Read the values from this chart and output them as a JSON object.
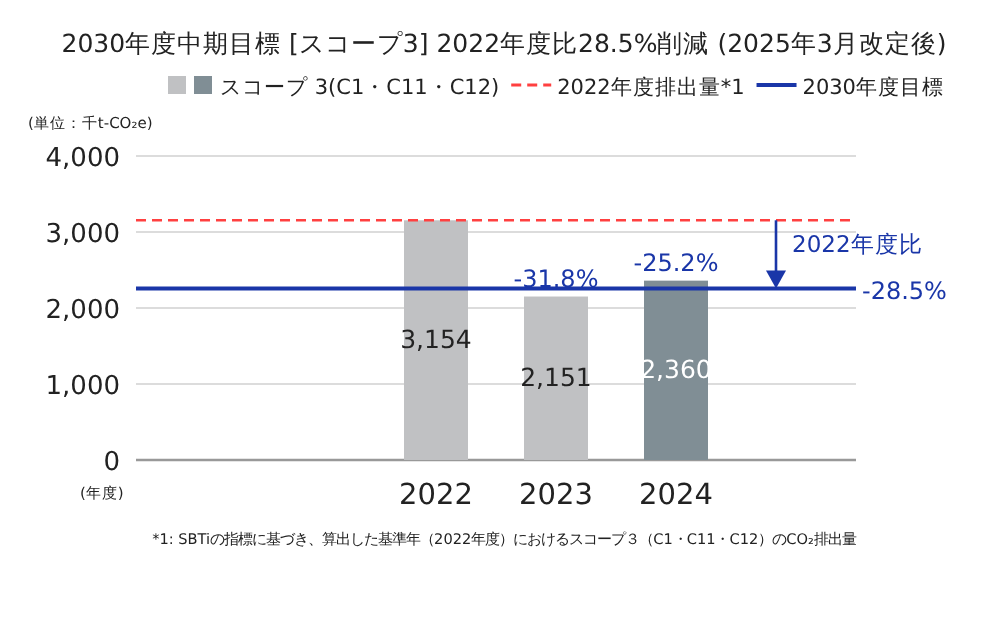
{
  "chart_data": {
    "type": "bar",
    "title": "2030年度中期目標 [スコープ3] 2022年度比28.5%削減 (2025年3月改定後)",
    "categories": [
      null,
      null,
      "2022",
      "2023",
      "2024",
      null
    ],
    "series": [
      {
        "name": "スコープ 3(C1・C11・C12)",
        "colors": [
          null,
          null,
          "#c0c1c3",
          "#c0c1c3",
          "#808e95",
          null
        ],
        "values": [
          null,
          null,
          3154,
          2151,
          2360,
          null
        ]
      }
    ],
    "value_labels": [
      null,
      null,
      "3,154",
      "2,151",
      "2,360",
      null
    ],
    "ylabel": "(単位：千t-CO₂e)",
    "xlabel": "(年度)",
    "ylim": [
      0,
      4000
    ],
    "yticks": [
      {
        "value": 0,
        "label": "0"
      },
      {
        "value": 1000,
        "label": "1,000"
      },
      {
        "value": 2000,
        "label": "2,000"
      },
      {
        "value": 3000,
        "label": "3,000"
      },
      {
        "value": 4000,
        "label": "4,000"
      }
    ],
    "grid": "y",
    "legend": "top",
    "ref_lines": [
      {
        "axis": "y",
        "value": 3154,
        "label": "2022年度排出量*1",
        "color": "#ff4040",
        "line_style": "dashed"
      },
      {
        "axis": "y",
        "value": 2255,
        "label": "2030年度目標",
        "color": "#1a36a8",
        "line_style": "solid"
      }
    ],
    "annotations": [
      {
        "text": "-31.8%",
        "x": "2023",
        "y": 2151
      },
      {
        "text": "-25.2%",
        "x": "2024",
        "y": 2360
      },
      "2022年度比",
      "-28.5%",
      "*1: SBTiの指標に基づき、算出した基準年（2022年度）におけるスコープ３（C1・C11・C12）のCO₂排出量"
    ]
  }
}
